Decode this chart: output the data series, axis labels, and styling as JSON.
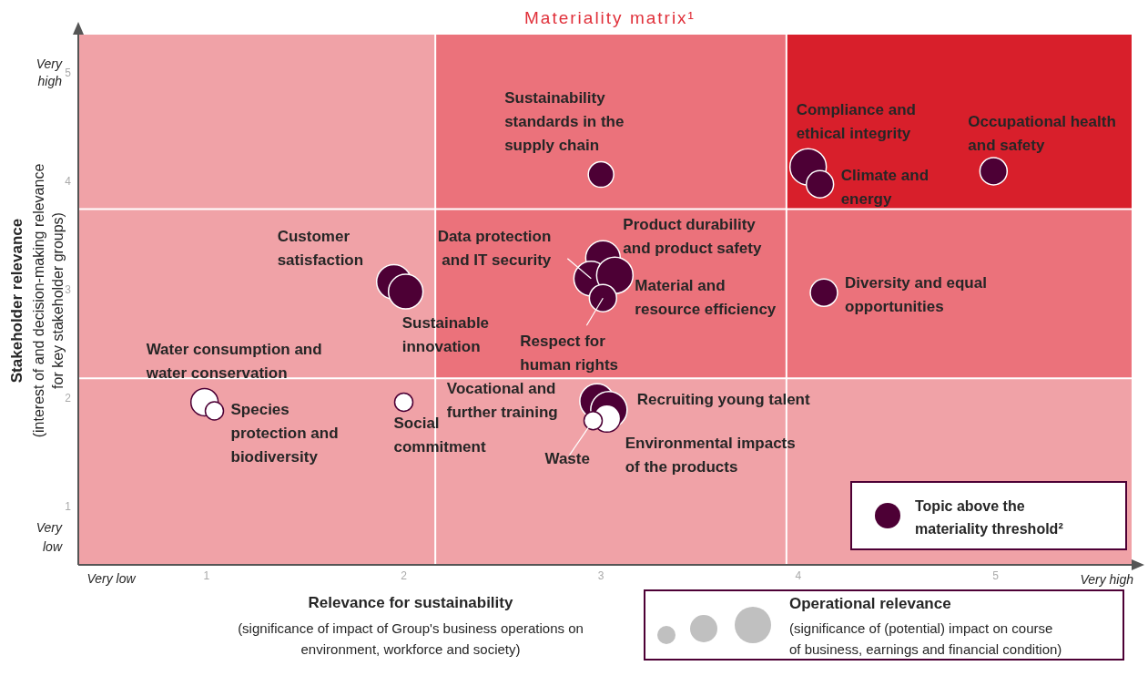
{
  "chart_data": {
    "type": "bubble",
    "title": "Materiality matrix¹",
    "xlabel": "Relevance for sustainability",
    "ylabel": "Stakeholder relevance",
    "xlim": [
      0.35,
      5.69
    ],
    "ylim": [
      0.46,
      5.35
    ],
    "xticks": [
      1,
      2,
      3,
      4,
      5
    ],
    "yticks": [
      1,
      2,
      3,
      4,
      5
    ],
    "grid": false,
    "legend": "bottom right",
    "ref_lines": [
      {
        "axis": "x",
        "value": 2.16,
        "color": "#ffffff"
      },
      {
        "axis": "x",
        "value": 3.94,
        "color": "#ffffff"
      },
      {
        "axis": "y",
        "value": 3.74,
        "color": "#ffffff"
      },
      {
        "axis": "y",
        "value": 2.18,
        "color": "#ffffff"
      }
    ],
    "series": [
      {
        "name": "Topic above the materiality threshold²",
        "color": "#4d0035",
        "x": [
          3.0,
          4.05,
          4.11,
          4.99,
          3.01,
          2.95,
          3.07,
          3.01,
          4.13,
          1.95,
          2.01,
          2.98,
          3.04
        ],
        "values": [
          4.06,
          4.13,
          3.97,
          4.09,
          3.29,
          3.1,
          3.13,
          2.92,
          2.97,
          3.07,
          2.98,
          1.97,
          1.89
        ],
        "sizes": [
          0.49,
          1,
          0.56,
          0.56,
          0.9,
          0.9,
          1,
          0.56,
          0.56,
          0.9,
          0.9,
          0.9,
          1
        ]
      },
      {
        "color": "#ffffff",
        "x": [
          0.99,
          1.04,
          2.0,
          3.03,
          2.96
        ],
        "values": [
          1.96,
          1.88,
          1.96,
          1.81,
          1.79
        ],
        "sizes": [
          0.56,
          0.25,
          0.25,
          0.56,
          0.25
        ]
      }
    ],
    "annotations": [
      {
        "text": "Sustainability standards in the supply chain",
        "x": 3.0,
        "y": 4.06
      },
      {
        "text": "Compliance and ethical integrity",
        "x": 4.05,
        "y": 4.13
      },
      {
        "text": "Climate and energy",
        "x": 4.11,
        "y": 3.97
      },
      {
        "text": "Occupational health and safety",
        "x": 4.99,
        "y": 4.09
      },
      {
        "text": "Product durability and product safety",
        "x": 3.01,
        "y": 3.29
      },
      {
        "text": "Data protection and IT security",
        "x": 2.95,
        "y": 3.1
      },
      {
        "text": "Material and resource efficiency",
        "x": 3.07,
        "y": 3.13
      },
      {
        "text": "Respect for human rights",
        "x": 3.01,
        "y": 2.92
      },
      {
        "text": "Diversity and equal opportunities",
        "x": 4.13,
        "y": 2.97
      },
      {
        "text": "Customer satisfaction",
        "x": 1.95,
        "y": 3.07
      },
      {
        "text": "Sustainable innovation",
        "x": 2.01,
        "y": 2.98
      },
      {
        "text": "Vocational and further training",
        "x": 2.98,
        "y": 1.97
      },
      {
        "text": "Recruiting young talent",
        "x": 3.04,
        "y": 1.89
      },
      {
        "text": "Water consumption and water conservation",
        "x": 0.99,
        "y": 1.96
      },
      {
        "text": "Species protection and biodiversity",
        "x": 1.04,
        "y": 1.88
      },
      {
        "text": "Social commitment",
        "x": 2.0,
        "y": 1.96
      },
      {
        "text": "Environmental impacts of the products",
        "x": 3.03,
        "y": 1.81
      },
      {
        "text": "Waste",
        "x": 2.96,
        "y": 1.79
      },
      "Very low",
      "Very high",
      "Very high",
      "Very low",
      "(interest of and decision-making relevance for key stakeholder groups)",
      "(significance of impact of Group's business operations on environment, workforce and society)",
      "Operational relevance",
      "(significance of (potential) impact on course of business, earnings and financial condition)"
    ]
  }
}
